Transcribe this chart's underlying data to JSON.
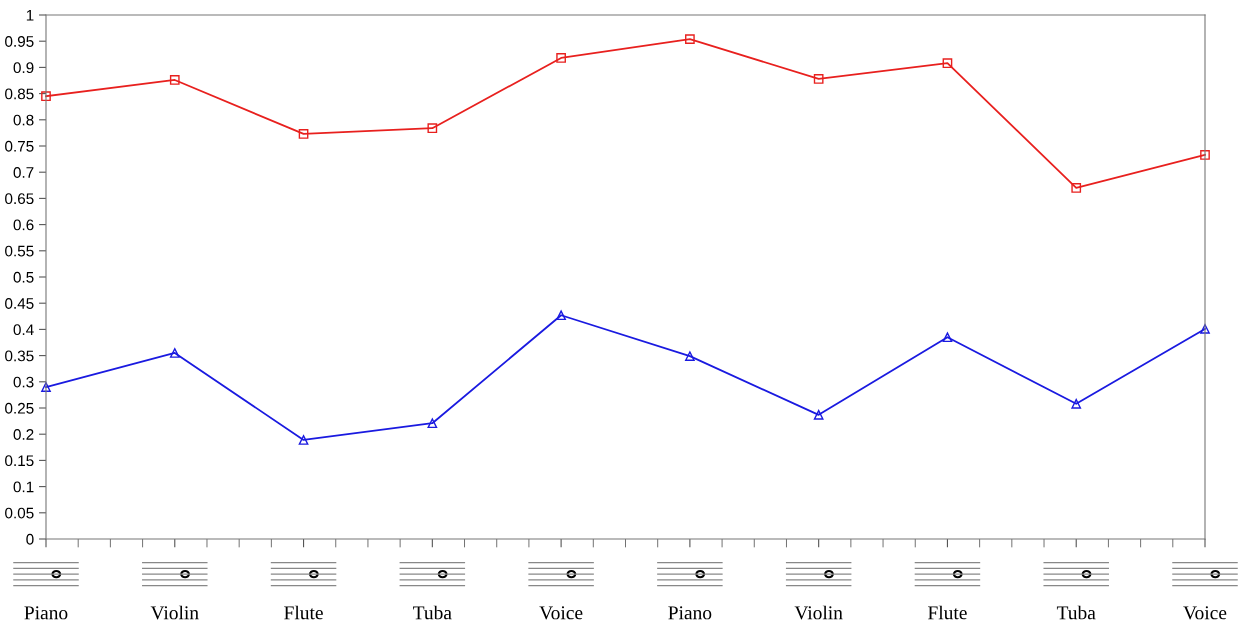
{
  "chart_data": {
    "type": "line",
    "categories": [
      "Piano",
      "Violin",
      "Flute",
      "Tuba",
      "Voice",
      "Piano",
      "Violin",
      "Flute",
      "Tuba",
      "Voice"
    ],
    "series": [
      {
        "color": "#e8201e",
        "marker": "square",
        "values": [
          0.845,
          0.876,
          0.773,
          0.784,
          0.918,
          0.954,
          0.878,
          0.908,
          0.67,
          0.733
        ]
      },
      {
        "color": "#1a1ae0",
        "marker": "triangle",
        "values": [
          0.29,
          0.355,
          0.189,
          0.221,
          0.427,
          0.349,
          0.237,
          0.385,
          0.258,
          0.401
        ]
      }
    ],
    "ylim": [
      0,
      1
    ],
    "yticks": [
      0,
      0.05,
      0.1,
      0.15,
      0.2,
      0.25,
      0.3,
      0.35,
      0.4,
      0.45,
      0.5,
      0.55,
      0.6,
      0.65,
      0.7,
      0.75,
      0.8,
      0.85,
      0.9,
      0.95,
      1
    ],
    "grid": false,
    "legend": false,
    "line_style": "solid"
  }
}
